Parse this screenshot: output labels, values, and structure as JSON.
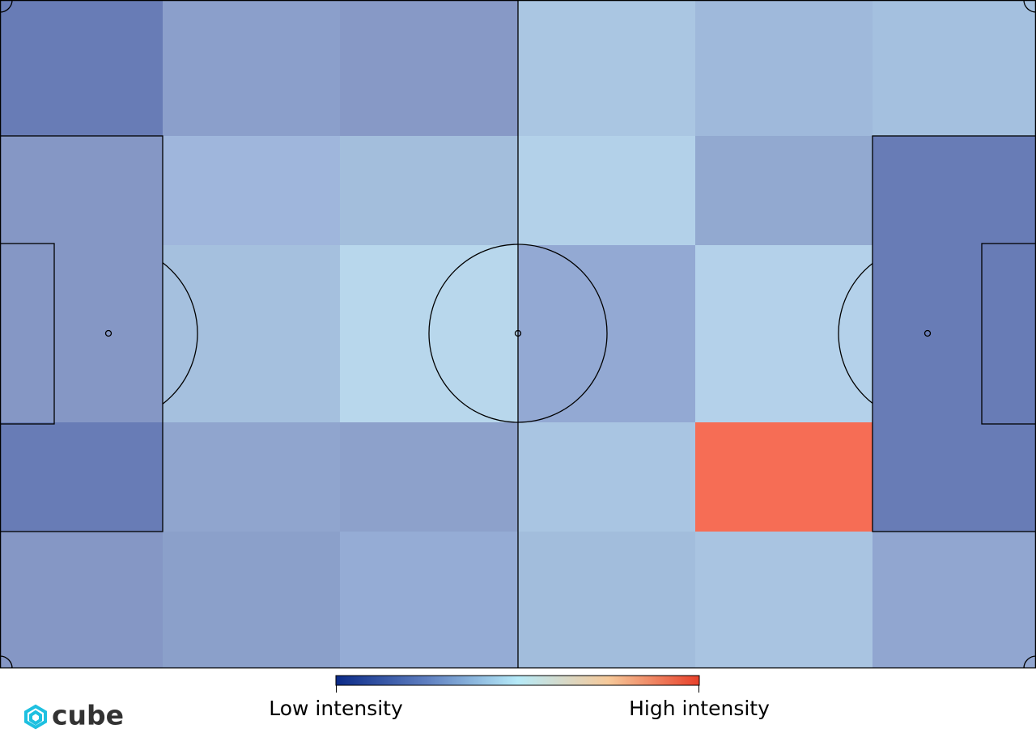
{
  "heatmap": {
    "cells": [
      [
        "#687cb6",
        "#8b9fcb",
        "#8799c6",
        "#aac6e2",
        "#9fb9db",
        "#a4c0df"
      ],
      [
        "#8597c5",
        "#9fb6dc",
        "#a3bedc",
        "#b3d1e9",
        "#92a9d0",
        "#687cb6"
      ],
      [
        "#8597c5",
        "#a5c0de",
        "#b8d7ec",
        "#93a9d3",
        "#b4d1ea",
        "#687cb6"
      ],
      [
        "#687cb6",
        "#90a5ce",
        "#8da1cb",
        "#a9c5e2",
        "#f66d55",
        "#687cb6"
      ],
      [
        "#8597c5",
        "#8ba0ca",
        "#95acd5",
        "#a2bddc",
        "#a9c4e1",
        "#91a6d0"
      ]
    ]
  },
  "colorbar": {
    "colors": [
      "#0b2a88",
      "#5f7fc0",
      "#b6eaf8",
      "#f6c99a",
      "#e8402a"
    ],
    "low_label": "Low intensity",
    "high_label": "High intensity"
  },
  "logo": "cube"
}
